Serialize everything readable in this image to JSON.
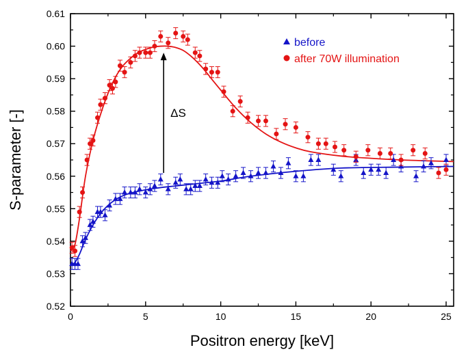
{
  "chart_data": {
    "type": "scatter",
    "title": "",
    "xlabel": "Positron energy [keV]",
    "ylabel": "S-parameter [-]",
    "xlim": [
      0,
      25.5
    ],
    "ylim": [
      0.52,
      0.61
    ],
    "xticks": [
      "0",
      "5",
      "10",
      "15",
      "20",
      "25"
    ],
    "yticks": [
      "0.52",
      "0.53",
      "0.54",
      "0.55",
      "0.56",
      "0.57",
      "0.58",
      "0.59",
      "0.60",
      "0.61"
    ],
    "xtick_values": [
      0,
      5,
      10,
      15,
      20,
      25
    ],
    "ytick_values": [
      0.52,
      0.53,
      0.54,
      0.55,
      0.56,
      0.57,
      0.58,
      0.59,
      0.6,
      0.61
    ],
    "grid": false,
    "legend_position": "top-right",
    "annotation": {
      "text": "ΔS",
      "x": 6.2,
      "y_from": 0.561,
      "y_to": 0.598
    },
    "series": [
      {
        "name": "before",
        "marker": "triangle",
        "color": "#1414c8",
        "x": [
          0.1,
          0.3,
          0.5,
          0.8,
          1.0,
          1.3,
          1.5,
          1.8,
          2.0,
          2.3,
          2.6,
          3.0,
          3.3,
          3.6,
          4.0,
          4.3,
          4.6,
          5.0,
          5.3,
          5.6,
          6.0,
          6.5,
          7.0,
          7.3,
          7.7,
          8.0,
          8.3,
          8.6,
          9.0,
          9.4,
          9.8,
          10.1,
          10.5,
          11.0,
          11.5,
          12.0,
          12.5,
          13.0,
          13.5,
          14.0,
          14.5,
          15.0,
          15.5,
          16.0,
          16.5,
          17.5,
          18.0,
          19.0,
          19.5,
          20.0,
          20.5,
          21.0,
          21.5,
          22.0,
          23.0,
          23.5,
          24.0,
          25.0
        ],
        "y": [
          0.533,
          0.533,
          0.533,
          0.54,
          0.541,
          0.545,
          0.546,
          0.549,
          0.549,
          0.548,
          0.551,
          0.553,
          0.553,
          0.555,
          0.555,
          0.555,
          0.556,
          0.555,
          0.556,
          0.557,
          0.559,
          0.556,
          0.558,
          0.559,
          0.556,
          0.556,
          0.557,
          0.557,
          0.559,
          0.558,
          0.558,
          0.56,
          0.559,
          0.56,
          0.561,
          0.56,
          0.561,
          0.561,
          0.563,
          0.561,
          0.564,
          0.56,
          0.56,
          0.565,
          0.565,
          0.562,
          0.56,
          0.565,
          0.561,
          0.562,
          0.562,
          0.561,
          0.565,
          0.563,
          0.56,
          0.563,
          0.564,
          0.565
        ],
        "fit_x": [
          0,
          0.3,
          0.6,
          1.0,
          1.5,
          2.0,
          2.5,
          3.0,
          3.5,
          4.0,
          5.0,
          6.0,
          7.0,
          8.0,
          10.0,
          12.0,
          15.0,
          18.0,
          22.0,
          25.5
        ],
        "fit_y": [
          0.5325,
          0.5335,
          0.536,
          0.5405,
          0.545,
          0.5485,
          0.551,
          0.5528,
          0.554,
          0.5548,
          0.5558,
          0.5565,
          0.557,
          0.5575,
          0.5585,
          0.56,
          0.5615,
          0.5625,
          0.5628,
          0.563
        ]
      },
      {
        "name": "after 70W illumination",
        "marker": "circle",
        "color": "#e41414",
        "x": [
          0.1,
          0.3,
          0.6,
          0.8,
          1.1,
          1.3,
          1.5,
          1.8,
          2.0,
          2.3,
          2.6,
          2.8,
          3.0,
          3.3,
          3.6,
          4.0,
          4.3,
          4.6,
          5.0,
          5.3,
          5.6,
          6.0,
          6.5,
          7.0,
          7.5,
          7.8,
          8.3,
          8.6,
          9.0,
          9.4,
          9.8,
          10.2,
          10.8,
          11.3,
          11.8,
          12.5,
          13.0,
          13.7,
          14.3,
          15.0,
          15.8,
          16.5,
          17.0,
          17.6,
          18.2,
          19.0,
          19.8,
          20.6,
          21.3,
          22.0,
          22.8,
          23.6,
          24.5,
          25.0
        ],
        "y": [
          0.538,
          0.537,
          0.549,
          0.555,
          0.565,
          0.57,
          0.571,
          0.578,
          0.582,
          0.584,
          0.588,
          0.587,
          0.589,
          0.594,
          0.592,
          0.595,
          0.597,
          0.598,
          0.598,
          0.598,
          0.6,
          0.603,
          0.601,
          0.604,
          0.603,
          0.602,
          0.598,
          0.597,
          0.593,
          0.592,
          0.592,
          0.586,
          0.58,
          0.583,
          0.578,
          0.577,
          0.577,
          0.573,
          0.576,
          0.575,
          0.572,
          0.57,
          0.57,
          0.569,
          0.568,
          0.566,
          0.568,
          0.567,
          0.567,
          0.565,
          0.568,
          0.567,
          0.561,
          0.562
        ],
        "fit_x": [
          0,
          0.3,
          0.6,
          1.0,
          1.5,
          2.0,
          2.5,
          3.0,
          3.5,
          4.0,
          4.5,
          5.0,
          5.5,
          6.0,
          6.5,
          7.0,
          7.5,
          8.0,
          8.5,
          9.0,
          9.5,
          10.0,
          11.0,
          12.0,
          13.0,
          14.0,
          15.0,
          16.0,
          18.0,
          20.0,
          22.0,
          24.0,
          25.5
        ],
        "fit_y": [
          0.537,
          0.539,
          0.547,
          0.56,
          0.571,
          0.579,
          0.5855,
          0.5905,
          0.594,
          0.5963,
          0.598,
          0.599,
          0.5997,
          0.6,
          0.6,
          0.5996,
          0.5987,
          0.597,
          0.5948,
          0.5922,
          0.5893,
          0.5865,
          0.581,
          0.5765,
          0.573,
          0.5705,
          0.5687,
          0.5675,
          0.5662,
          0.5655,
          0.565,
          0.5647,
          0.5645
        ]
      }
    ]
  }
}
